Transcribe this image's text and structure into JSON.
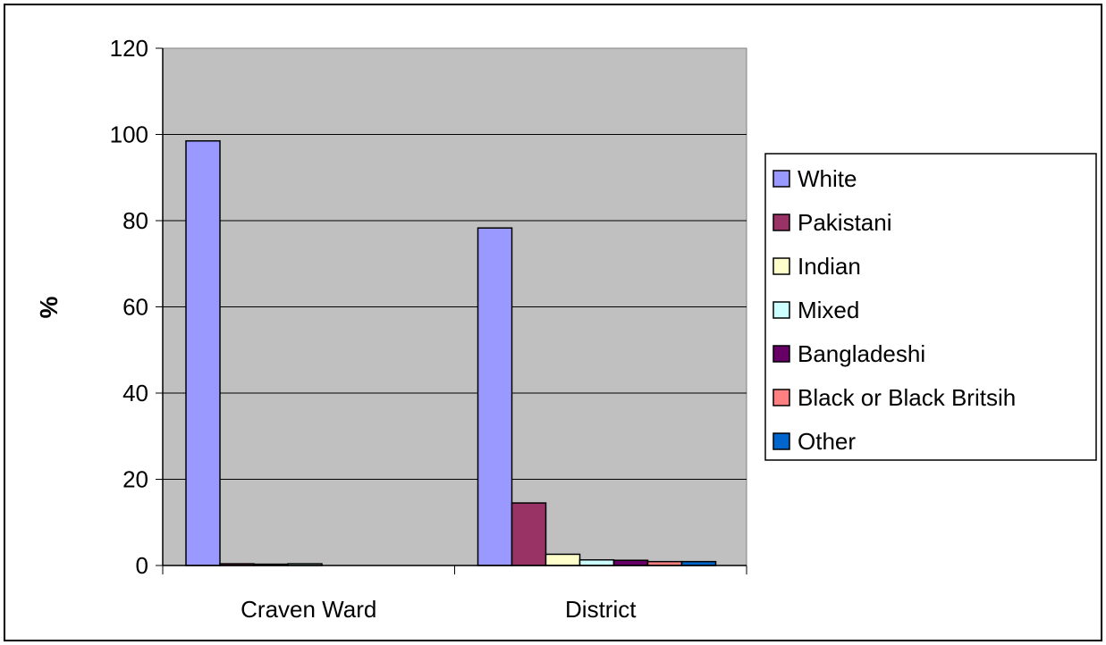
{
  "chart_data": {
    "type": "bar",
    "title": "",
    "xlabel": "",
    "ylabel": "%",
    "ylim": [
      0,
      120
    ],
    "yticks": [
      0,
      20,
      40,
      60,
      80,
      100,
      120
    ],
    "grid": true,
    "legend": "right",
    "categories": [
      "Craven Ward",
      "District"
    ],
    "series": [
      {
        "name": "White",
        "color": "#9999ff",
        "values": [
          98.5,
          78.3
        ]
      },
      {
        "name": "Pakistani",
        "color": "#993366",
        "values": [
          0.4,
          14.5
        ]
      },
      {
        "name": "Indian",
        "color": "#ffffcc",
        "values": [
          0.3,
          2.6
        ]
      },
      {
        "name": "Mixed",
        "color": "#ccffff",
        "values": [
          0.4,
          1.3
        ]
      },
      {
        "name": "Bangladeshi",
        "color": "#660066",
        "values": [
          0,
          1.2
        ]
      },
      {
        "name": "Black or Black Britsih",
        "color": "#ff8080",
        "values": [
          0,
          0.9
        ]
      },
      {
        "name": "Other",
        "color": "#0066cc",
        "values": [
          0,
          0.9
        ]
      }
    ],
    "plot_background": "#c0c0c0"
  }
}
